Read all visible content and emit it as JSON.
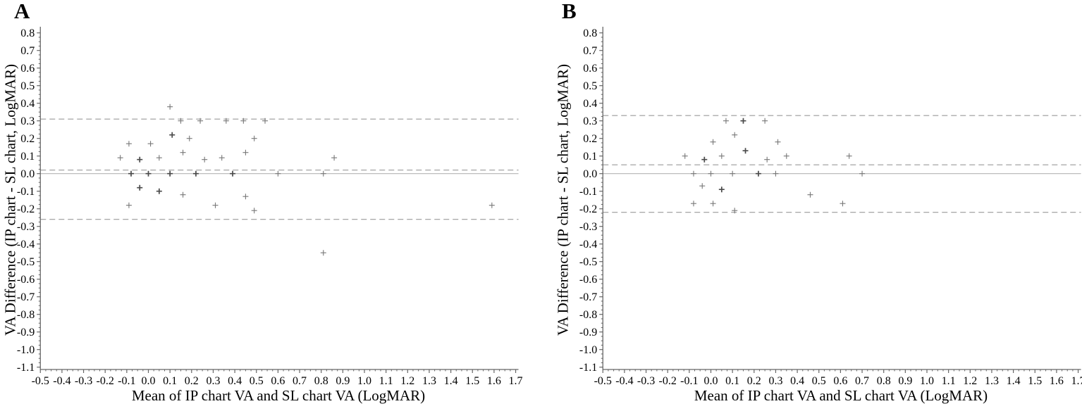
{
  "figure": {
    "background_color": "#ffffff",
    "panels": [
      "A",
      "B"
    ]
  },
  "styles": {
    "axis_color": "#666666",
    "tick_color": "#666666",
    "text_color": "#000000",
    "loa_line_color": "#9a9a9a",
    "zero_line_color": "#b5b5b5",
    "marker_color": "#787878",
    "marker_bold_color": "#4a4a4a"
  },
  "chart_data": [
    {
      "panel_label": "A",
      "type": "scatter",
      "marker_glyph": "+",
      "title": "",
      "xlabel": "Mean of IP chart VA and SL chart VA (LogMAR)",
      "ylabel": "VA Difference (IP chart - SL chart, LogMAR)",
      "xlim": [
        -0.5,
        1.7
      ],
      "ylim": [
        -1.1,
        0.8
      ],
      "grid": false,
      "legend": false,
      "xticks": [
        -0.5,
        -0.4,
        -0.3,
        -0.2,
        -0.1,
        0.0,
        0.1,
        0.2,
        0.3,
        0.4,
        0.5,
        0.6,
        0.7,
        0.8,
        0.9,
        1.0,
        1.1,
        1.2,
        1.3,
        1.4,
        1.5,
        1.6,
        1.7
      ],
      "yticks": [
        0.8,
        0.7,
        0.6,
        0.5,
        0.4,
        0.3,
        0.2,
        0.1,
        0.0,
        -0.1,
        -0.2,
        -0.3,
        -0.4,
        -0.5,
        -0.6,
        -0.7,
        -0.8,
        -0.9,
        -1.0,
        -1.1
      ],
      "lines": {
        "upper_loa": 0.31,
        "mean_difference": 0.02,
        "zero": 0.0,
        "lower_loa": -0.26
      },
      "points_format": "[mean_x, difference_y, bold_overlap_flag]",
      "points": [
        [
          0.1,
          0.38,
          0
        ],
        [
          0.15,
          0.3,
          0
        ],
        [
          0.24,
          0.3,
          0
        ],
        [
          0.36,
          0.3,
          0
        ],
        [
          0.44,
          0.3,
          0
        ],
        [
          0.54,
          0.3,
          0
        ],
        [
          0.11,
          0.22,
          1
        ],
        [
          0.19,
          0.2,
          0
        ],
        [
          0.49,
          0.2,
          0
        ],
        [
          -0.09,
          0.17,
          0
        ],
        [
          0.01,
          0.17,
          0
        ],
        [
          0.16,
          0.12,
          0
        ],
        [
          0.45,
          0.12,
          0
        ],
        [
          -0.13,
          0.09,
          0
        ],
        [
          0.05,
          0.09,
          0
        ],
        [
          0.34,
          0.09,
          0
        ],
        [
          0.86,
          0.09,
          0
        ],
        [
          -0.04,
          0.08,
          1
        ],
        [
          0.26,
          0.08,
          0
        ],
        [
          -0.08,
          0.0,
          1
        ],
        [
          0.0,
          0.0,
          1
        ],
        [
          0.1,
          0.0,
          1
        ],
        [
          0.22,
          0.0,
          1
        ],
        [
          0.39,
          0.0,
          1
        ],
        [
          0.6,
          0.0,
          0
        ],
        [
          0.81,
          0.0,
          0
        ],
        [
          -0.04,
          -0.08,
          1
        ],
        [
          0.05,
          -0.1,
          1
        ],
        [
          0.16,
          -0.12,
          0
        ],
        [
          0.45,
          -0.13,
          0
        ],
        [
          -0.09,
          -0.18,
          0
        ],
        [
          0.31,
          -0.18,
          0
        ],
        [
          1.59,
          -0.18,
          0
        ],
        [
          0.49,
          -0.21,
          0
        ],
        [
          0.81,
          -0.45,
          0
        ]
      ]
    },
    {
      "panel_label": "B",
      "type": "scatter",
      "marker_glyph": "+",
      "title": "",
      "xlabel": "Mean of IP chart VA and SL chart VA (LogMAR)",
      "ylabel": "VA Difference (IP chart - SL chart, LogMAR)",
      "xlim": [
        -0.5,
        1.7
      ],
      "ylim": [
        -1.1,
        0.8
      ],
      "grid": false,
      "legend": false,
      "xticks": [
        -0.5,
        -0.4,
        -0.3,
        -0.2,
        -0.1,
        0.0,
        0.1,
        0.2,
        0.3,
        0.4,
        0.5,
        0.6,
        0.7,
        0.8,
        0.9,
        1.0,
        1.1,
        1.2,
        1.3,
        1.4,
        1.5,
        1.6,
        1.7
      ],
      "yticks": [
        0.8,
        0.7,
        0.6,
        0.5,
        0.4,
        0.3,
        0.2,
        0.1,
        0.0,
        -0.1,
        -0.2,
        -0.3,
        -0.4,
        -0.5,
        -0.6,
        -0.7,
        -0.8,
        -0.9,
        -1.0,
        -1.1
      ],
      "lines": {
        "upper_loa": 0.33,
        "mean_difference": 0.05,
        "zero": 0.0,
        "lower_loa": -0.22
      },
      "points_format": "[mean_x, difference_y, bold_overlap_flag]",
      "points": [
        [
          0.07,
          0.3,
          0
        ],
        [
          0.15,
          0.3,
          1
        ],
        [
          0.25,
          0.3,
          0
        ],
        [
          0.11,
          0.22,
          0
        ],
        [
          0.01,
          0.18,
          0
        ],
        [
          0.31,
          0.18,
          0
        ],
        [
          0.16,
          0.13,
          1
        ],
        [
          -0.12,
          0.1,
          0
        ],
        [
          0.05,
          0.1,
          0
        ],
        [
          0.35,
          0.1,
          0
        ],
        [
          0.64,
          0.1,
          0
        ],
        [
          -0.03,
          0.08,
          1
        ],
        [
          0.26,
          0.08,
          0
        ],
        [
          -0.08,
          0.0,
          0
        ],
        [
          0.0,
          0.0,
          0
        ],
        [
          0.1,
          0.0,
          0
        ],
        [
          0.22,
          0.0,
          1
        ],
        [
          0.3,
          0.0,
          0
        ],
        [
          0.7,
          0.0,
          0
        ],
        [
          -0.04,
          -0.07,
          0
        ],
        [
          0.05,
          -0.09,
          1
        ],
        [
          0.46,
          -0.12,
          0
        ],
        [
          -0.08,
          -0.17,
          0
        ],
        [
          0.01,
          -0.17,
          0
        ],
        [
          0.61,
          -0.17,
          0
        ],
        [
          0.11,
          -0.21,
          0
        ]
      ]
    }
  ]
}
